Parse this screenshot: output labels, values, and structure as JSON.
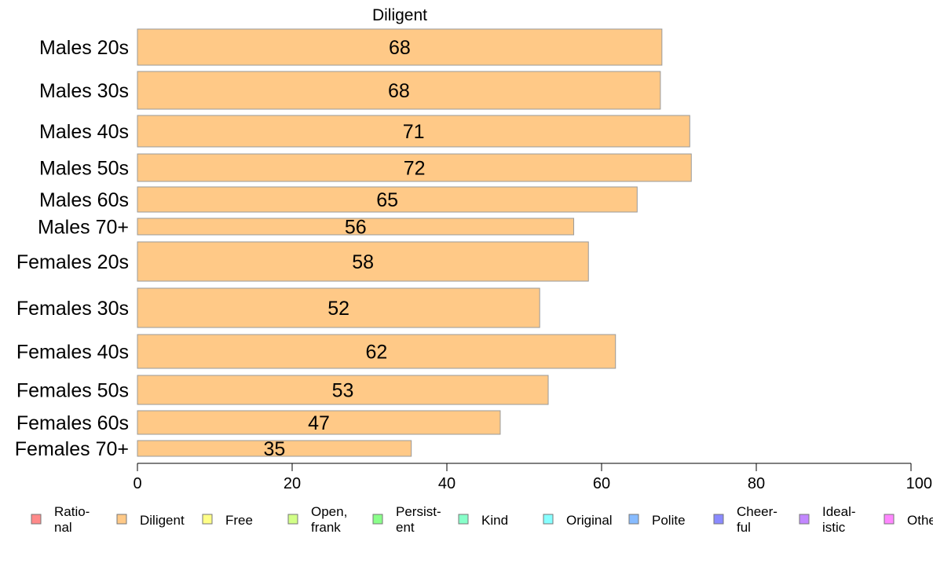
{
  "chart_data": {
    "type": "bar",
    "orientation": "horizontal",
    "title": "Diligent",
    "categories": [
      "Males 20s",
      "Males 30s",
      "Males 40s",
      "Males 50s",
      "Males 60s",
      "Males 70+",
      "Females 20s",
      "Females 30s",
      "Females 40s",
      "Females 50s",
      "Females 60s",
      "Females 70+"
    ],
    "values": [
      67.8,
      67.6,
      71.4,
      71.6,
      64.6,
      56.4,
      58.3,
      52.0,
      61.8,
      53.1,
      46.9,
      35.4
    ],
    "value_labels": [
      "68",
      "68",
      "71",
      "72",
      "65",
      "56",
      "58",
      "52",
      "62",
      "53",
      "47",
      "35"
    ],
    "xlim": [
      0,
      100
    ],
    "xticks": [
      "0",
      "20",
      "40",
      "60",
      "80",
      "100"
    ],
    "grid": false,
    "bar_color": "#FFC987",
    "legend_placement": "bottom",
    "legend": [
      {
        "lines": [
          "Ratio-",
          "nal"
        ],
        "color": "#FF8A8A"
      },
      {
        "lines": [
          "Diligent"
        ],
        "color": "#FFC987"
      },
      {
        "lines": [
          "Free"
        ],
        "color": "#FFFF87"
      },
      {
        "lines": [
          "Open,",
          "frank"
        ],
        "color": "#D2FF87"
      },
      {
        "lines": [
          "Persist-",
          "ent"
        ],
        "color": "#8AFF8A"
      },
      {
        "lines": [
          "Kind"
        ],
        "color": "#87FFC9"
      },
      {
        "lines": [
          "Original"
        ],
        "color": "#87FFFF"
      },
      {
        "lines": [
          "Polite"
        ],
        "color": "#87BBFF"
      },
      {
        "lines": [
          "Cheer-",
          "ful"
        ],
        "color": "#8A8AFF"
      },
      {
        "lines": [
          "Ideal-",
          "istic"
        ],
        "color": "#C287FF"
      },
      {
        "lines": [
          "Othe"
        ],
        "color": "#FF87FF"
      }
    ]
  }
}
